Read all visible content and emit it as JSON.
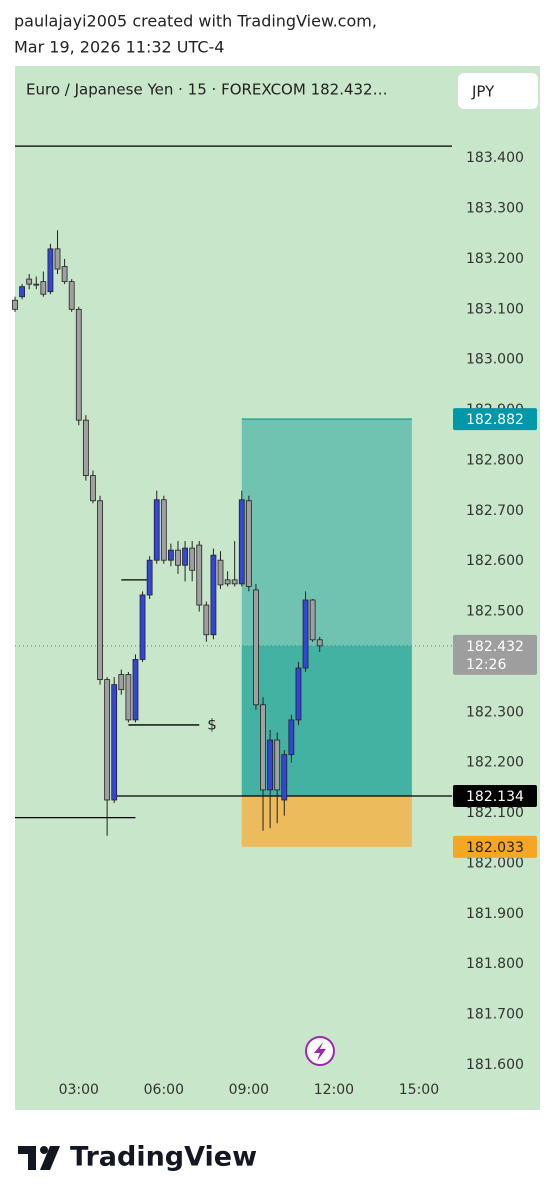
{
  "header": {
    "author_line": "paulajayi2005 created with TradingView.com,",
    "date_line": "Mar 19, 2026 11:32 UTC-4"
  },
  "chart_data": {
    "type": "candlestick",
    "legend": "Euro / Japanese Yen · 15 · FOREXCOM  182.432…",
    "currency": "JPY",
    "background": "#c8e6c9",
    "up_color": "#3446d8",
    "down_color": "#a0a0a0",
    "x": [
      "00:45",
      "01:00",
      "01:15",
      "01:30",
      "01:45",
      "02:00",
      "02:15",
      "02:30",
      "02:45",
      "03:00",
      "03:15",
      "03:30",
      "03:45",
      "04:00",
      "04:15",
      "04:30",
      "04:45",
      "05:00",
      "05:15",
      "05:30",
      "05:45",
      "06:00",
      "06:15",
      "06:30",
      "06:45",
      "07:00",
      "07:15",
      "07:30",
      "07:45",
      "08:00",
      "08:15",
      "08:30",
      "08:45",
      "09:00",
      "09:15",
      "09:30",
      "09:45",
      "10:00",
      "10:15",
      "10:30",
      "10:45",
      "11:00",
      "11:15",
      "11:30"
    ],
    "open": [
      183.118,
      183.125,
      183.16,
      183.15,
      183.155,
      183.135,
      183.22,
      183.185,
      183.155,
      183.1,
      182.88,
      182.77,
      182.72,
      182.365,
      182.126,
      182.375,
      182.375,
      182.285,
      182.405,
      182.533,
      182.602,
      182.722,
      182.602,
      182.622,
      182.592,
      182.626,
      182.632,
      182.513,
      182.454,
      182.602,
      182.563,
      182.563,
      182.555,
      182.72,
      182.543,
      182.315,
      182.146,
      182.245,
      182.126,
      182.216,
      182.285,
      182.388,
      182.523,
      182.444
    ],
    "high": [
      183.125,
      183.15,
      183.17,
      183.165,
      183.175,
      183.23,
      183.257,
      183.2,
      183.16,
      183.105,
      182.89,
      182.78,
      182.73,
      182.37,
      182.37,
      182.385,
      182.38,
      182.415,
      182.54,
      182.61,
      182.74,
      182.73,
      182.635,
      182.64,
      182.64,
      182.64,
      182.64,
      182.52,
      182.625,
      182.62,
      182.58,
      182.64,
      182.74,
      182.73,
      182.555,
      182.33,
      182.265,
      182.26,
      182.225,
      182.295,
      182.4,
      182.54,
      182.525,
      182.45
    ],
    "low": [
      183.095,
      183.12,
      183.14,
      183.14,
      183.125,
      183.13,
      183.17,
      183.15,
      183.095,
      182.87,
      182.76,
      182.715,
      182.355,
      182.055,
      182.12,
      182.335,
      182.28,
      182.28,
      182.4,
      182.525,
      182.595,
      182.595,
      182.59,
      182.575,
      182.56,
      182.56,
      182.5,
      182.44,
      182.445,
      182.545,
      182.55,
      182.55,
      182.55,
      182.54,
      182.305,
      182.065,
      182.07,
      182.08,
      182.095,
      182.2,
      182.275,
      182.38,
      182.44,
      182.42
    ],
    "close": [
      183.1,
      183.145,
      183.15,
      183.148,
      183.13,
      183.22,
      183.18,
      183.155,
      183.1,
      182.88,
      182.77,
      182.72,
      182.365,
      182.126,
      182.355,
      182.345,
      182.285,
      182.405,
      182.533,
      182.602,
      182.722,
      182.602,
      182.622,
      182.592,
      182.626,
      182.582,
      182.513,
      182.454,
      182.612,
      182.553,
      182.555,
      182.555,
      182.722,
      182.55,
      182.315,
      182.146,
      182.245,
      182.146,
      182.216,
      182.285,
      182.388,
      182.523,
      182.444,
      182.432
    ],
    "xlim": [
      "00:45",
      "16:10"
    ],
    "xticks": [
      "03:00",
      "06:00",
      "09:00",
      "12:00",
      "15:00"
    ],
    "ylim": [
      181.594,
      183.585
    ],
    "yticks": [
      {
        "value": 183.4,
        "label": "183.400"
      },
      {
        "value": 183.3,
        "label": "183.300"
      },
      {
        "value": 183.2,
        "label": "183.200"
      },
      {
        "value": 183.1,
        "label": "183.100"
      },
      {
        "value": 183.0,
        "label": "183.000"
      },
      {
        "value": 182.9,
        "label": "182.900"
      },
      {
        "value": 182.8,
        "label": "182.800"
      },
      {
        "value": 182.7,
        "label": "182.700"
      },
      {
        "value": 182.6,
        "label": "182.600"
      },
      {
        "value": 182.5,
        "label": "182.500"
      },
      {
        "value": 182.4,
        "label": "182.400"
      },
      {
        "value": 182.3,
        "label": "182.300"
      },
      {
        "value": 182.2,
        "label": "182.200"
      },
      {
        "value": 182.1,
        "label": "182.100"
      },
      {
        "value": 182.0,
        "label": "182.000"
      },
      {
        "value": 181.9,
        "label": "181.900"
      },
      {
        "value": 181.8,
        "label": "181.800"
      },
      {
        "value": 181.7,
        "label": "181.700"
      },
      {
        "value": 181.6,
        "label": "181.600"
      }
    ],
    "last_price": 182.432,
    "countdown": "12:26",
    "position": {
      "start": "08:45",
      "end": "14:45",
      "target": 182.882,
      "entry": 182.134,
      "stop": 182.033,
      "target_color": "#26a69a",
      "stop_color": "#f5b041"
    },
    "drawings": [
      {
        "price": 183.424,
        "start": "00:45",
        "end": "16:10"
      },
      {
        "price": 182.091,
        "start": "00:45",
        "end": "05:00"
      },
      {
        "price": 182.134,
        "start": "04:15",
        "end": "16:10"
      },
      {
        "price": 182.563,
        "start": "04:30",
        "end": "05:30"
      },
      {
        "price": 182.275,
        "start": "04:45",
        "end": "07:15"
      }
    ],
    "drawing_label": "$"
  },
  "footer": {
    "brand": "TradingView"
  }
}
